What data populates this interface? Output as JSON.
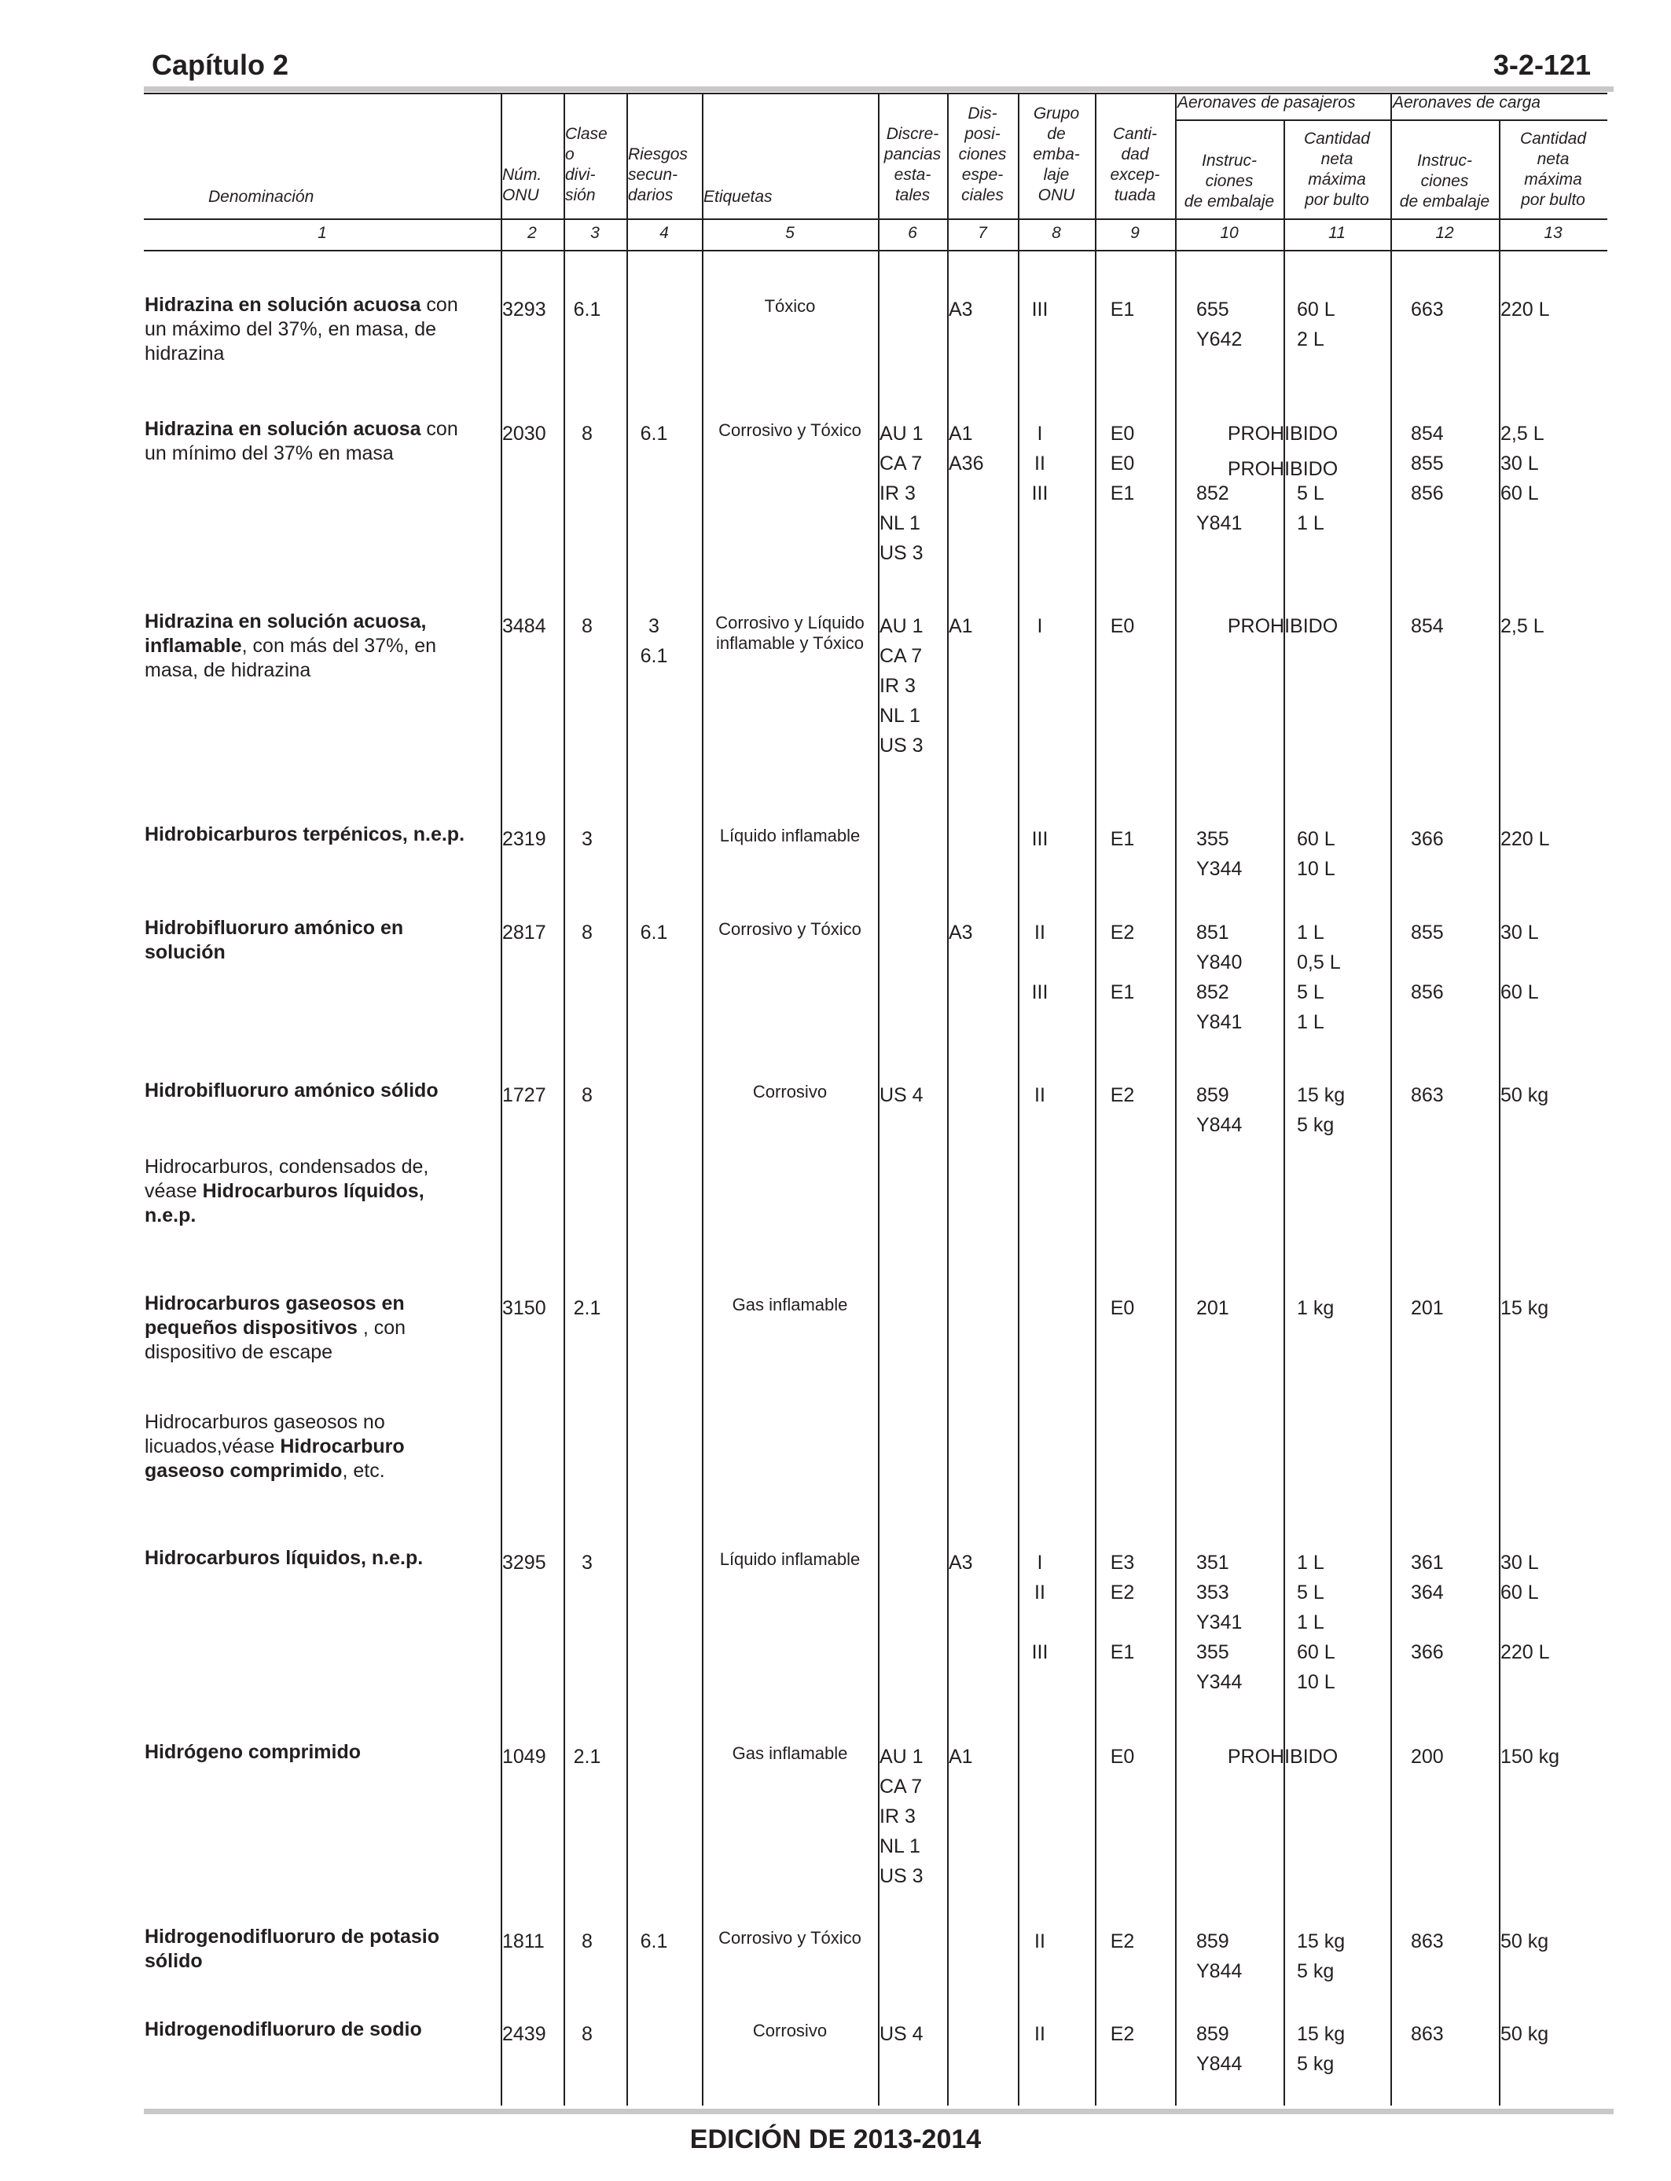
{
  "header": {
    "chapter": "Capítulo 2",
    "page": "3-2-121"
  },
  "table": {
    "headers": {
      "denominacion": "Denominación",
      "onu": [
        "Núm.",
        "ONU"
      ],
      "clase": [
        "Clase",
        "o",
        "divi-",
        "sión"
      ],
      "riesgos": [
        "Riesgos",
        "secun-",
        "darios"
      ],
      "etiquetas": "Etiquetas",
      "discrepancias": [
        "Discre-",
        "pancias",
        "esta-",
        "tales"
      ],
      "disposiciones": [
        "Dis-",
        "posi-",
        "ciones",
        "espe-",
        "ciales"
      ],
      "grupo": [
        "Grupo",
        "de",
        "emba-",
        "laje",
        "ONU"
      ],
      "cantidad_exceptuada": [
        "Canti-",
        "dad",
        "excep-",
        "tuada"
      ],
      "pasajeros": "Aeronaves de pasajeros",
      "carga": "Aeronaves de carga",
      "instrucciones": [
        "Instruc-",
        "ciones",
        "de embalaje"
      ],
      "cantidad_neta": [
        "Cantidad",
        "neta",
        "máxima",
        "por bulto"
      ]
    },
    "column_numbers": [
      "1",
      "2",
      "3",
      "4",
      "5",
      "6",
      "7",
      "8",
      "9",
      "10",
      "11",
      "12",
      "13"
    ],
    "rows": [
      {
        "name_bold": "Hidrazina en solución acuosa",
        "name_rest": " con un máximo del 37%, en masa, de hidrazina",
        "onu": "3293",
        "clase": "6.1",
        "riesgos": "",
        "etiquetas": "Tóxico",
        "discrepancias": "",
        "disposiciones": "A3",
        "grupo": "III",
        "cant_exc": "E1",
        "pas_instr": "655\nY642",
        "pas_cant": "60 L\n2 L",
        "carga_instr": "663",
        "carga_cant": "220 L"
      },
      {
        "name_bold": "Hidrazina en solución acuosa",
        "name_rest": " con un mínimo del 37% en masa",
        "onu": "2030",
        "clase": "8",
        "riesgos": "6.1",
        "etiquetas": "Corrosivo y Tóxico",
        "discrepancias": "AU 1\nCA 7\nIR 3\nNL 1\nUS 3",
        "disposiciones": "A1\nA36",
        "grupo": "I\nII\nIII",
        "cant_exc": "E0\nE0\nE1",
        "pas_instr": "\n\n852\nY841",
        "pas_cant": "\n\n5 L\n1 L",
        "prohibido": [
          "PROHIBIDO",
          "PROHIBIDO"
        ],
        "carga_instr": "854\n855\n856",
        "carga_cant": "2,5 L\n30 L\n60 L"
      },
      {
        "name_bold": "Hidrazina en solución acuosa, inflamable",
        "name_rest": ", con más del 37%, en masa, de hidrazina",
        "onu": "3484",
        "clase": "8",
        "riesgos": "3\n6.1",
        "etiquetas": "Corrosivo y Líquido inflamable y Tóxico",
        "discrepancias": "AU 1\nCA 7\nIR 3\nNL 1\nUS 3",
        "disposiciones": "A1",
        "grupo": "I",
        "cant_exc": "E0",
        "prohibido": [
          "PROHIBIDO"
        ],
        "carga_instr": "854",
        "carga_cant": "2,5 L"
      },
      {
        "name_bold": "Hidrobicarburos terpénicos, n.e.p.",
        "name_rest": "",
        "onu": "2319",
        "clase": "3",
        "riesgos": "",
        "etiquetas": "Líquido inflamable",
        "discrepancias": "",
        "disposiciones": "",
        "grupo": "III",
        "cant_exc": "E1",
        "pas_instr": "355\nY344",
        "pas_cant": "60 L\n10 L",
        "carga_instr": "366",
        "carga_cant": "220 L"
      },
      {
        "name_bold": "Hidrobifluoruro amónico en solución",
        "name_rest": "",
        "onu": "2817",
        "clase": "8",
        "riesgos": "6.1",
        "etiquetas": "Corrosivo y Tóxico",
        "discrepancias": "",
        "disposiciones": "A3",
        "grupo": "II\n\nIII",
        "cant_exc": "E2\n\nE1",
        "pas_instr": "851\nY840\n852\nY841",
        "pas_cant": "1 L\n0,5 L\n5 L\n1 L",
        "carga_instr": "855\n\n856",
        "carga_cant": "30 L\n\n60 L"
      },
      {
        "name_bold": "Hidrobifluoruro amónico sólido",
        "name_rest": "",
        "onu": "1727",
        "clase": "8",
        "riesgos": "",
        "etiquetas": "Corrosivo",
        "discrepancias": "US 4",
        "disposiciones": "",
        "grupo": "II",
        "cant_exc": "E2",
        "pas_instr": "859\nY844",
        "pas_cant": "15 kg\n5 kg",
        "carga_instr": "863",
        "carga_cant": "50 kg"
      },
      {
        "name_pre": "Hidrocarburos, condensados de, véase ",
        "name_bold": "Hidrocarburos líquidos, n.e.p.",
        "name_rest": ""
      },
      {
        "name_bold": "Hidrocarburos gaseosos en pequeños dispositivos",
        "name_rest": " , con dispositivo de escape",
        "onu": "3150",
        "clase": "2.1",
        "riesgos": "",
        "etiquetas": "Gas inflamable",
        "discrepancias": "",
        "disposiciones": "",
        "grupo": "",
        "cant_exc": "E0",
        "pas_instr": "201",
        "pas_cant": "1 kg",
        "carga_instr": "201",
        "carga_cant": "15 kg"
      },
      {
        "name_pre": "Hidrocarburos gaseosos no licuados,véase ",
        "name_bold": "Hidrocarburo gaseoso comprimido",
        "name_rest": ", etc."
      },
      {
        "name_bold": "Hidrocarburos líquidos, n.e.p.",
        "name_rest": "",
        "onu": "3295",
        "clase": "3",
        "riesgos": "",
        "etiquetas": "Líquido inflamable",
        "discrepancias": "",
        "disposiciones": "A3",
        "grupo": "I\nII\n\nIII",
        "cant_exc": "E3\nE2\n\nE1",
        "pas_instr": "351\n353\nY341\n355\nY344",
        "pas_cant": "1 L\n5 L\n1 L\n60 L\n10 L",
        "carga_instr": "361\n364\n\n366",
        "carga_cant": "30 L\n60 L\n\n220 L"
      },
      {
        "name_bold": "Hidrógeno comprimido",
        "name_rest": "",
        "onu": "1049",
        "clase": "2.1",
        "riesgos": "",
        "etiquetas": "Gas inflamable",
        "discrepancias": "AU 1\nCA 7\nIR 3\nNL 1\nUS 3",
        "disposiciones": "A1",
        "grupo": "",
        "cant_exc": "E0",
        "prohibido": [
          "PROHIBIDO"
        ],
        "carga_instr": "200",
        "carga_cant": "150 kg"
      },
      {
        "name_bold": "Hidrogenodifluoruro de potasio sólido",
        "name_rest": "",
        "onu": "1811",
        "clase": "8",
        "riesgos": "6.1",
        "etiquetas": "Corrosivo y Tóxico",
        "discrepancias": "",
        "disposiciones": "",
        "grupo": "II",
        "cant_exc": "E2",
        "pas_instr": "859\nY844",
        "pas_cant": "15 kg\n5 kg",
        "carga_instr": "863",
        "carga_cant": "50 kg"
      },
      {
        "name_bold": "Hidrogenodifluoruro de sodio",
        "name_rest": "",
        "onu": "2439",
        "clase": "8",
        "riesgos": "",
        "etiquetas": "Corrosivo",
        "discrepancias": "US 4",
        "disposiciones": "",
        "grupo": "II",
        "cant_exc": "E2",
        "pas_instr": "859\nY844",
        "pas_cant": "15 kg\n5 kg",
        "carga_instr": "863",
        "carga_cant": "50 kg"
      }
    ]
  },
  "footer": "EDICIÓN DE 2013-2014"
}
